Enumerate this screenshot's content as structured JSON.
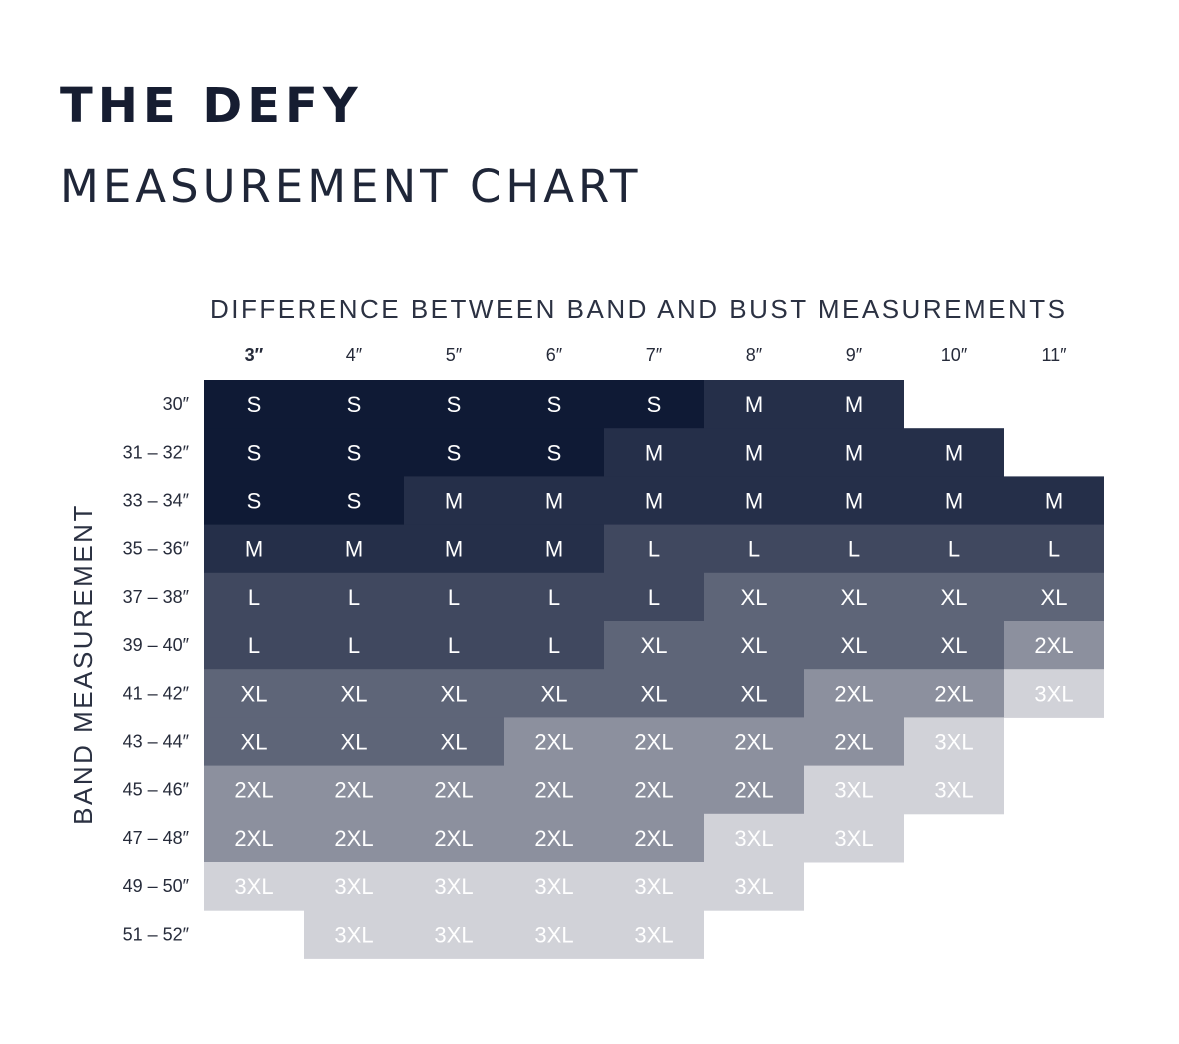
{
  "header": {
    "title": "THE DEFY",
    "subtitle": "MEASUREMENT CHART"
  },
  "colors": {
    "S": "#0f1a35",
    "M": "#252f49",
    "L": "#40485f",
    "XL": "#5e6578",
    "2XL": "#8c909e",
    "3XL": "#d1d2d8"
  },
  "chart_data": {
    "type": "table",
    "title": "",
    "xlabel": "DIFFERENCE BETWEEN BAND AND BUST MEASUREMENTS",
    "ylabel": "BAND MEASUREMENT",
    "columns": [
      "3″",
      "4″",
      "5″",
      "6″",
      "7″",
      "8″",
      "9″",
      "10″",
      "11″"
    ],
    "rows": [
      {
        "label": "30″",
        "cells": [
          "S",
          "S",
          "S",
          "S",
          "S",
          "M",
          "M",
          "",
          ""
        ]
      },
      {
        "label": "31 – 32″",
        "cells": [
          "S",
          "S",
          "S",
          "S",
          "M",
          "M",
          "M",
          "M",
          ""
        ]
      },
      {
        "label": "33 – 34″",
        "cells": [
          "S",
          "S",
          "M",
          "M",
          "M",
          "M",
          "M",
          "M",
          "M"
        ]
      },
      {
        "label": "35 – 36″",
        "cells": [
          "M",
          "M",
          "M",
          "M",
          "L",
          "L",
          "L",
          "L",
          "L"
        ]
      },
      {
        "label": "37 – 38″",
        "cells": [
          "L",
          "L",
          "L",
          "L",
          "L",
          "XL",
          "XL",
          "XL",
          "XL"
        ]
      },
      {
        "label": "39 – 40″",
        "cells": [
          "L",
          "L",
          "L",
          "L",
          "XL",
          "XL",
          "XL",
          "XL",
          "2XL"
        ]
      },
      {
        "label": "41 – 42″",
        "cells": [
          "XL",
          "XL",
          "XL",
          "XL",
          "XL",
          "XL",
          "2XL",
          "2XL",
          "3XL"
        ]
      },
      {
        "label": "43 – 44″",
        "cells": [
          "XL",
          "XL",
          "XL",
          "2XL",
          "2XL",
          "2XL",
          "2XL",
          "3XL",
          ""
        ]
      },
      {
        "label": "45 – 46″",
        "cells": [
          "2XL",
          "2XL",
          "2XL",
          "2XL",
          "2XL",
          "2XL",
          "3XL",
          "3XL",
          ""
        ]
      },
      {
        "label": "47 – 48″",
        "cells": [
          "2XL",
          "2XL",
          "2XL",
          "2XL",
          "2XL",
          "3XL",
          "3XL",
          "",
          ""
        ]
      },
      {
        "label": "49 – 50″",
        "cells": [
          "3XL",
          "3XL",
          "3XL",
          "3XL",
          "3XL",
          "3XL",
          "",
          "",
          ""
        ]
      },
      {
        "label": "51 – 52″",
        "cells": [
          "",
          "3XL",
          "3XL",
          "3XL",
          "3XL",
          "",
          "",
          "",
          ""
        ]
      }
    ]
  }
}
